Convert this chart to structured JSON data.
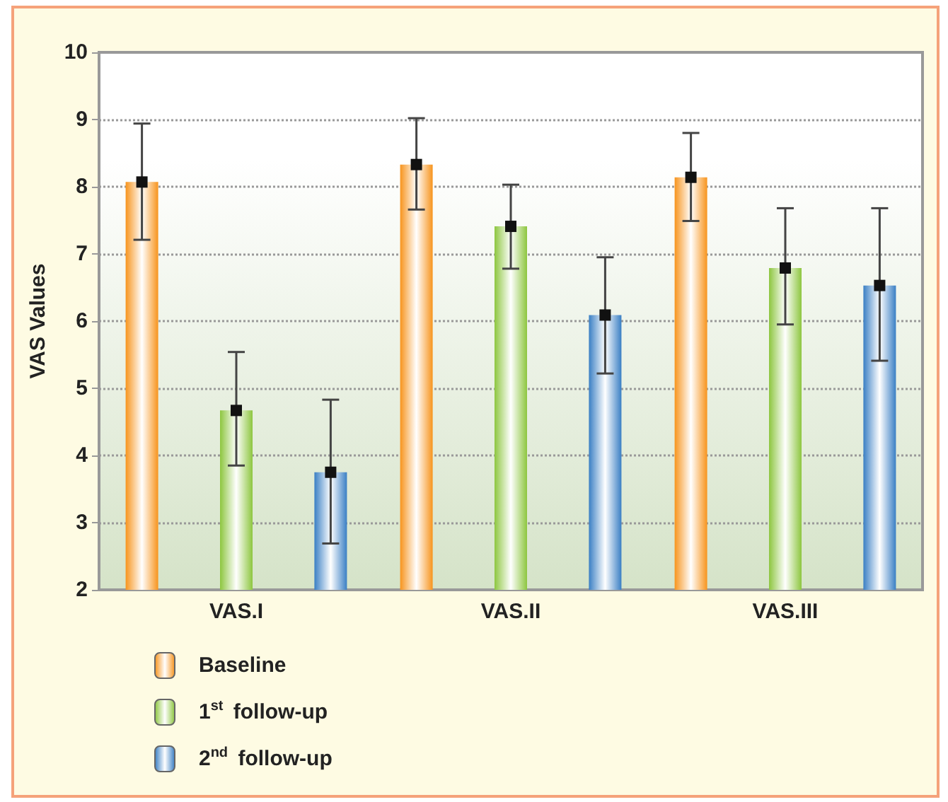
{
  "chart_data": {
    "type": "bar",
    "ylabel": "VAS Values",
    "categories": [
      "VAS.I",
      "VAS.II",
      "VAS.III"
    ],
    "series": [
      {
        "name": "Baseline",
        "color": "#f7941d",
        "values": [
          8.07,
          8.33,
          8.14
        ],
        "errors": [
          [
            7.21,
            8.94
          ],
          [
            7.66,
            9.02
          ],
          [
            7.49,
            8.8
          ]
        ]
      },
      {
        "name": "1$^{st}$ follow-up",
        "color": "#8dc63f",
        "values": [
          4.67,
          7.41,
          6.79
        ],
        "errors": [
          [
            3.85,
            5.54
          ],
          [
            6.78,
            8.03
          ],
          [
            5.95,
            7.68
          ]
        ]
      },
      {
        "name": "2$^{nd}$ follow-up",
        "color": "#3a7fc4",
        "values": [
          3.75,
          6.09,
          6.53
        ],
        "errors": [
          [
            2.69,
            4.83
          ],
          [
            5.22,
            6.95
          ],
          [
            5.41,
            7.68
          ]
        ]
      }
    ],
    "ylim": [
      2,
      10
    ],
    "yticks": [
      2,
      3,
      4,
      5,
      6,
      7,
      8,
      9,
      10
    ],
    "grid": "y",
    "legend": "bottom left",
    "marker": "square"
  }
}
